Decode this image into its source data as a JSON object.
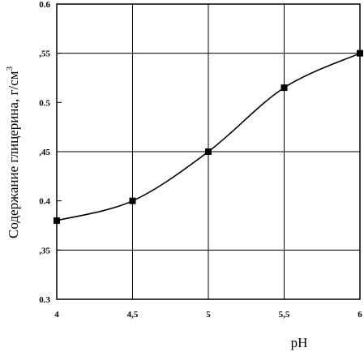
{
  "chart_data": {
    "type": "line",
    "title": "",
    "xlabel": "pH",
    "ylabel": "Содержание глицерина, г/см",
    "ylabel_sup": "3",
    "xlim": [
      4,
      6
    ],
    "ylim": [
      0.3,
      0.6
    ],
    "grid": true,
    "x_ticks": [
      4,
      4.5,
      5,
      5.5,
      6
    ],
    "x_tick_labels": [
      "4",
      "4,5",
      "5",
      "5,5",
      "6"
    ],
    "y_ticks": [
      0.3,
      0.35,
      0.4,
      0.45,
      0.5,
      0.55,
      0.6
    ],
    "y_tick_labels": [
      "0.3",
      ",35",
      "0.4",
      ",45",
      "0.5",
      ",55",
      "0.6"
    ],
    "series": [
      {
        "x": [
          4,
          4.5,
          5,
          5.5,
          6
        ],
        "values": [
          0.38,
          0.4,
          0.45,
          0.515,
          0.55
        ],
        "marker": "square",
        "smooth": true,
        "color": "#000000"
      }
    ]
  }
}
